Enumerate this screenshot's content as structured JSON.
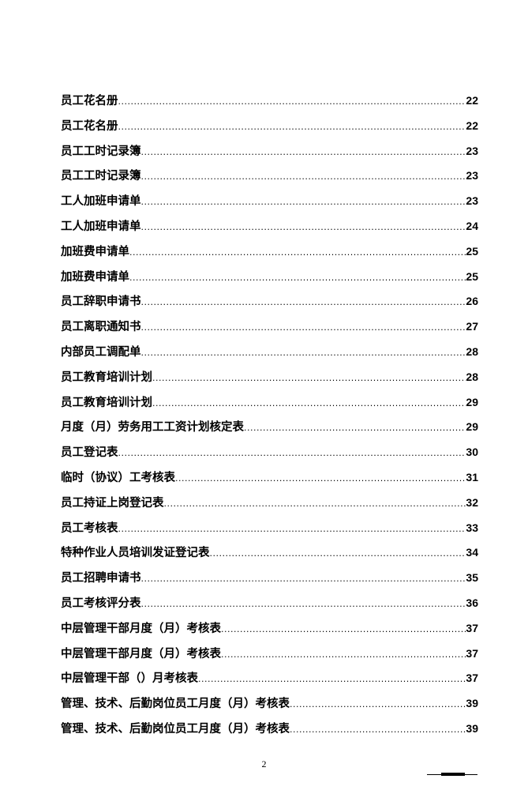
{
  "toc": [
    {
      "title": "员工花名册",
      "page": "22"
    },
    {
      "title": "员工花名册",
      "page": "22"
    },
    {
      "title": "员工工时记录簿",
      "page": "23"
    },
    {
      "title": "员工工时记录簿",
      "page": "23"
    },
    {
      "title": "工人加班申请单",
      "page": "23"
    },
    {
      "title": "工人加班申请单",
      "page": "24"
    },
    {
      "title": "加班费申请单",
      "page": "25"
    },
    {
      "title": "加班费申请单",
      "page": "25"
    },
    {
      "title": "员工辞职申请书",
      "page": "26"
    },
    {
      "title": "员工离职通知书",
      "page": "27"
    },
    {
      "title": "内部员工调配单",
      "page": "28"
    },
    {
      "title": "员工教育培训计划",
      "page": "28"
    },
    {
      "title": "员工教育培训计划",
      "page": "29"
    },
    {
      "title": "月度（月）劳务用工工资计划核定表",
      "page": "29"
    },
    {
      "title": "员工登记表",
      "page": "30"
    },
    {
      "title": "临时（协议）工考核表",
      "page": "31"
    },
    {
      "title": "员工持证上岗登记表",
      "page": "32"
    },
    {
      "title": "员工考核表",
      "page": "33"
    },
    {
      "title": "特种作业人员培训发证登记表",
      "page": "34"
    },
    {
      "title": "员工招聘申请书",
      "page": "35"
    },
    {
      "title": "员工考核评分表",
      "page": "36"
    },
    {
      "title": "中层管理干部月度（月）考核表",
      "page": "37"
    },
    {
      "title": "中层管理干部月度（月）考核表",
      "page": "37"
    },
    {
      "title": "中层管理干部（）月考核表",
      "page": "37"
    },
    {
      "title": "管理、技术、后勤岗位员工月度（月）考核表",
      "page": "39"
    },
    {
      "title": "管理、技术、后勤岗位员工月度（月）考核表",
      "page": "39"
    }
  ],
  "footer": {
    "page_number": "2"
  }
}
